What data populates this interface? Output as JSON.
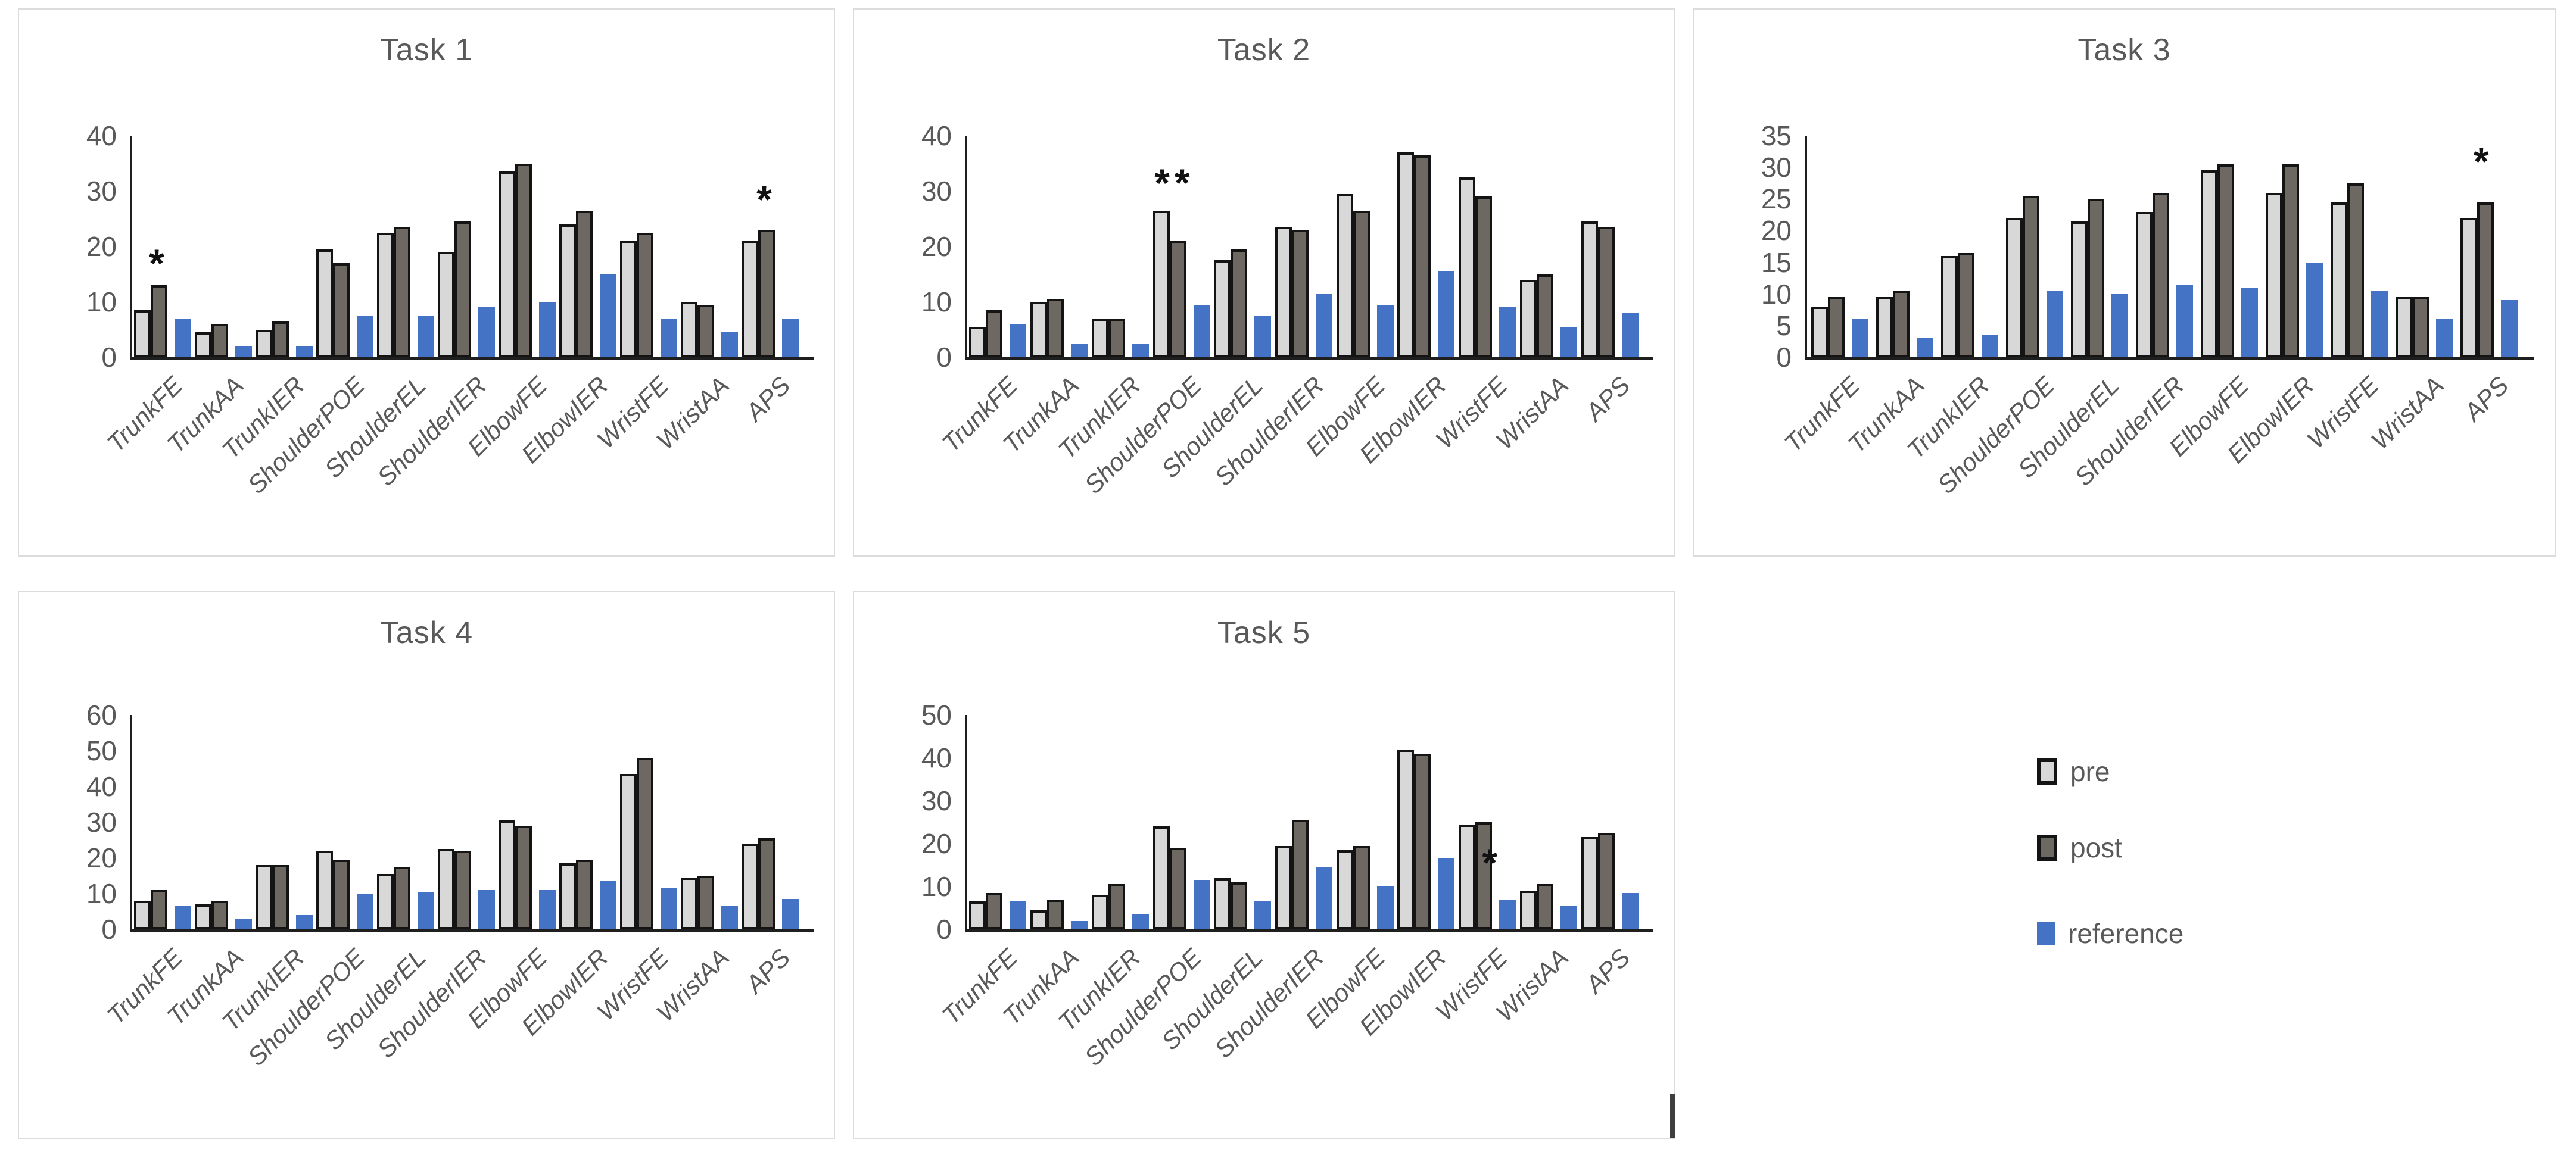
{
  "page": {
    "background": "#ffffff"
  },
  "colors": {
    "pre_fill": "#d8d8d8",
    "post_fill": "#6e6862",
    "bar_outline": "#141414",
    "reference_fill": "#4472c4",
    "axis_line": "#1f1f1f",
    "label_text": "#595959",
    "panel_border": "#dcdcdc",
    "annotation_text": "#111111"
  },
  "legend": {
    "items": [
      {
        "name": "pre",
        "label": "pre",
        "swatch": "light-gray-outlined-box"
      },
      {
        "name": "post",
        "label": "post",
        "swatch": "dark-gray-outlined-box"
      },
      {
        "name": "reference",
        "label": "reference",
        "swatch": "blue-box"
      }
    ]
  },
  "chart_data": [
    {
      "type": "bar",
      "title": "Task 1",
      "categories": [
        "TrunkFE",
        "TrunkAA",
        "TrunkIER",
        "ShoulderPOE",
        "ShoulderEL",
        "ShoulderIER",
        "ElbowFE",
        "ElbowIER",
        "WristFE",
        "WristAA",
        "APS"
      ],
      "series": [
        {
          "name": "pre",
          "values": [
            8.5,
            4.5,
            5,
            19.5,
            22.5,
            19,
            33.5,
            24,
            21,
            10,
            21
          ]
        },
        {
          "name": "post",
          "values": [
            13,
            6,
            6.5,
            17,
            23.5,
            24.5,
            35,
            26.5,
            22.5,
            9.5,
            23
          ]
        },
        {
          "name": "reference",
          "values": [
            7,
            2,
            2,
            7.5,
            7.5,
            9,
            10,
            15,
            7,
            4.5,
            7
          ]
        }
      ],
      "ylim": [
        0,
        40
      ],
      "yticks": [
        0,
        10,
        20,
        30,
        40
      ],
      "grid": false,
      "annotations": [
        {
          "text": "*",
          "category": "TrunkFE",
          "y": 17,
          "over_bar_index": 1
        },
        {
          "text": "*",
          "category": "APS",
          "y": 28.5,
          "over_bar_index": 1
        }
      ]
    },
    {
      "type": "bar",
      "title": "Task 2",
      "categories": [
        "TrunkFE",
        "TrunkAA",
        "TrunkIER",
        "ShoulderPOE",
        "ShoulderEL",
        "ShoulderIER",
        "ElbowFE",
        "ElbowIER",
        "WristFE",
        "WristAA",
        "APS"
      ],
      "series": [
        {
          "name": "pre",
          "values": [
            5.5,
            10,
            7,
            26.5,
            17.5,
            23.5,
            29.5,
            37,
            32.5,
            14,
            24.5
          ]
        },
        {
          "name": "post",
          "values": [
            8.5,
            10.5,
            7,
            21,
            19.5,
            23,
            26.5,
            36.5,
            29,
            15,
            23.5
          ]
        },
        {
          "name": "reference",
          "values": [
            6,
            2.5,
            2.5,
            9.5,
            7.5,
            11.5,
            9.5,
            15.5,
            9,
            5.5,
            8
          ]
        }
      ],
      "ylim": [
        0,
        40
      ],
      "yticks": [
        0,
        10,
        20,
        30,
        40
      ],
      "grid": false,
      "annotations": [
        {
          "text": "**",
          "category": "ShoulderPOE",
          "y": 31.5,
          "over_bar_index": 0.8
        }
      ]
    },
    {
      "type": "bar",
      "title": "Task 3",
      "categories": [
        "TrunkFE",
        "TrunkAA",
        "TrunkIER",
        "ShoulderPOE",
        "ShoulderEL",
        "ShoulderIER",
        "ElbowFE",
        "ElbowIER",
        "WristFE",
        "WristAA",
        "APS"
      ],
      "series": [
        {
          "name": "pre",
          "values": [
            8,
            9.5,
            16,
            22,
            21.5,
            23,
            29.5,
            26,
            24.5,
            9.5,
            22
          ]
        },
        {
          "name": "post",
          "values": [
            9.5,
            10.5,
            16.5,
            25.5,
            25,
            26,
            30.5,
            30.5,
            27.5,
            9.5,
            24.5
          ]
        },
        {
          "name": "reference",
          "values": [
            6,
            3,
            3.5,
            10.5,
            10,
            11.5,
            11,
            15,
            10.5,
            6,
            9
          ]
        }
      ],
      "ylim": [
        0,
        35
      ],
      "yticks": [
        0,
        5,
        10,
        15,
        20,
        25,
        30,
        35
      ],
      "grid": false,
      "annotations": [
        {
          "text": "*",
          "category": "APS",
          "y": 31,
          "over_bar_index": 0.9
        }
      ]
    },
    {
      "type": "bar",
      "title": "Task 4",
      "categories": [
        "TrunkFE",
        "TrunkAA",
        "TrunkIER",
        "ShoulderPOE",
        "ShoulderEL",
        "ShoulderIER",
        "ElbowFE",
        "ElbowIER",
        "WristFE",
        "WristAA",
        "APS"
      ],
      "series": [
        {
          "name": "pre",
          "values": [
            8,
            7,
            18,
            22,
            15.5,
            22.5,
            30.5,
            18.5,
            43.5,
            14.5,
            24
          ]
        },
        {
          "name": "post",
          "values": [
            11,
            8,
            18,
            19.5,
            17.5,
            22,
            29,
            19.5,
            48,
            15,
            25.5
          ]
        },
        {
          "name": "reference",
          "values": [
            6.5,
            3,
            4,
            10,
            10.5,
            11,
            11,
            13.5,
            11.5,
            6.5,
            8.5
          ]
        }
      ],
      "ylim": [
        0,
        60
      ],
      "yticks": [
        0,
        10,
        20,
        30,
        40,
        50,
        60
      ],
      "grid": false,
      "annotations": []
    },
    {
      "type": "bar",
      "title": "Task 5",
      "categories": [
        "TrunkFE",
        "TrunkAA",
        "TrunkIER",
        "ShoulderPOE",
        "ShoulderEL",
        "ShoulderIER",
        "ElbowFE",
        "ElbowIER",
        "WristFE",
        "WristAA",
        "APS"
      ],
      "series": [
        {
          "name": "pre",
          "values": [
            6.5,
            4.5,
            8,
            24,
            12,
            19.5,
            18.5,
            42,
            24.5,
            9,
            21.5
          ]
        },
        {
          "name": "post",
          "values": [
            8.5,
            7,
            10.5,
            19,
            11,
            25.5,
            19.5,
            41,
            25,
            10.5,
            22.5
          ]
        },
        {
          "name": "reference",
          "values": [
            6.5,
            2,
            3.5,
            11.5,
            6.5,
            14.5,
            10,
            16.5,
            7,
            5.5,
            8.5
          ]
        }
      ],
      "ylim": [
        0,
        50
      ],
      "yticks": [
        0,
        10,
        20,
        30,
        40,
        50
      ],
      "grid": false,
      "annotations": [
        {
          "text": "*",
          "category": "WristFE",
          "y": 15.5,
          "over_bar_index": 1.5
        }
      ]
    }
  ]
}
